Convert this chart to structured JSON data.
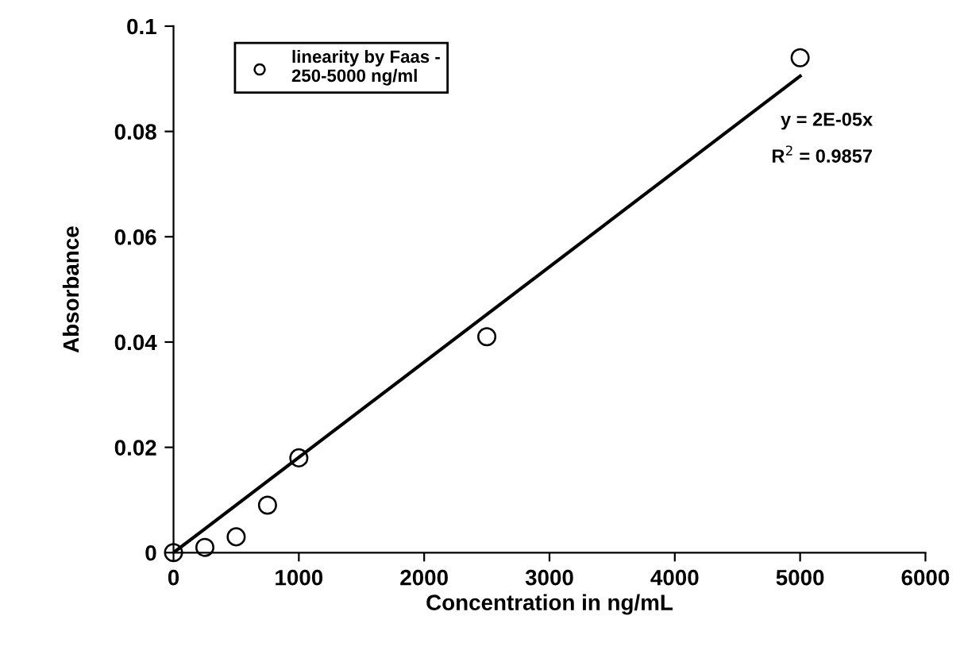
{
  "chart_data": {
    "type": "scatter",
    "xlabel": "Concentration in ng/mL",
    "ylabel": "Absorbance",
    "x": [
      0,
      250,
      500,
      750,
      1000,
      2500,
      5000
    ],
    "series": [
      {
        "name": "linearity by Faas -\n250-5000 ng/ml",
        "color": "#000000",
        "marker": "circle",
        "values": [
          0,
          0.001,
          0.003,
          0.009,
          0.018,
          0.041,
          0.094
        ]
      },
      {
        "type": "line",
        "color": "#000000",
        "marker": "none",
        "x": [
          0,
          5000
        ],
        "values": [
          0,
          0.0905
        ]
      }
    ],
    "annotations": [
      "y = 2E-05x",
      "R$^{2}$ = 0.9857"
    ],
    "xlim": [
      0,
      6000
    ],
    "xticks": [
      0,
      1000,
      2000,
      3000,
      4000,
      5000,
      6000
    ],
    "ylim": [
      0,
      0.1
    ],
    "yticks": [
      0,
      0.02,
      0.04,
      0.06,
      0.08,
      0.1
    ],
    "legend": "top left",
    "grid": false
  }
}
